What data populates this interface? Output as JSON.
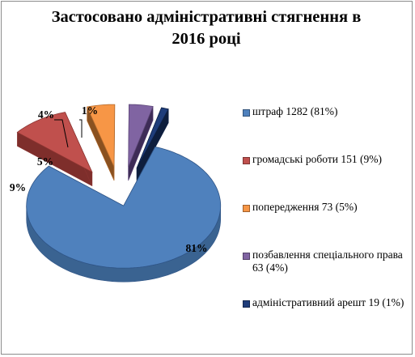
{
  "chart_data": {
    "type": "pie",
    "title_lines": [
      "Застосовано адміністративні стягнення в",
      "2016 році"
    ],
    "legend_position": "right",
    "slices": [
      {
        "legend": "штраф   1282 (81%)",
        "value": 1282,
        "percent_label": "81%",
        "color": "#4F81BD",
        "side": "#3A6391",
        "edge": "#2F5486"
      },
      {
        "legend": "громадські роботи   151 (9%)",
        "value": 151,
        "percent_label": "9%",
        "color": "#C0504D",
        "side": "#7E2E2B",
        "edge": "#8B3431"
      },
      {
        "legend": "попередження   73 (5%)",
        "value": 73,
        "percent_label": "5%",
        "color": "#F79646",
        "side": "#8A5120",
        "edge": "#B56C2E"
      },
      {
        "legend": "позбавлення спеціального права   63 (4%)",
        "value": 63,
        "percent_label": "4%",
        "color": "#8064A2",
        "side": "#3E2C57",
        "edge": "#5D4778"
      },
      {
        "legend": "адміністративний арешт   19 (1%)",
        "value": 19,
        "percent_label": "1%",
        "color": "#1F3D7A",
        "side": "#0E1E3D",
        "edge": "#0D1F45"
      }
    ]
  }
}
